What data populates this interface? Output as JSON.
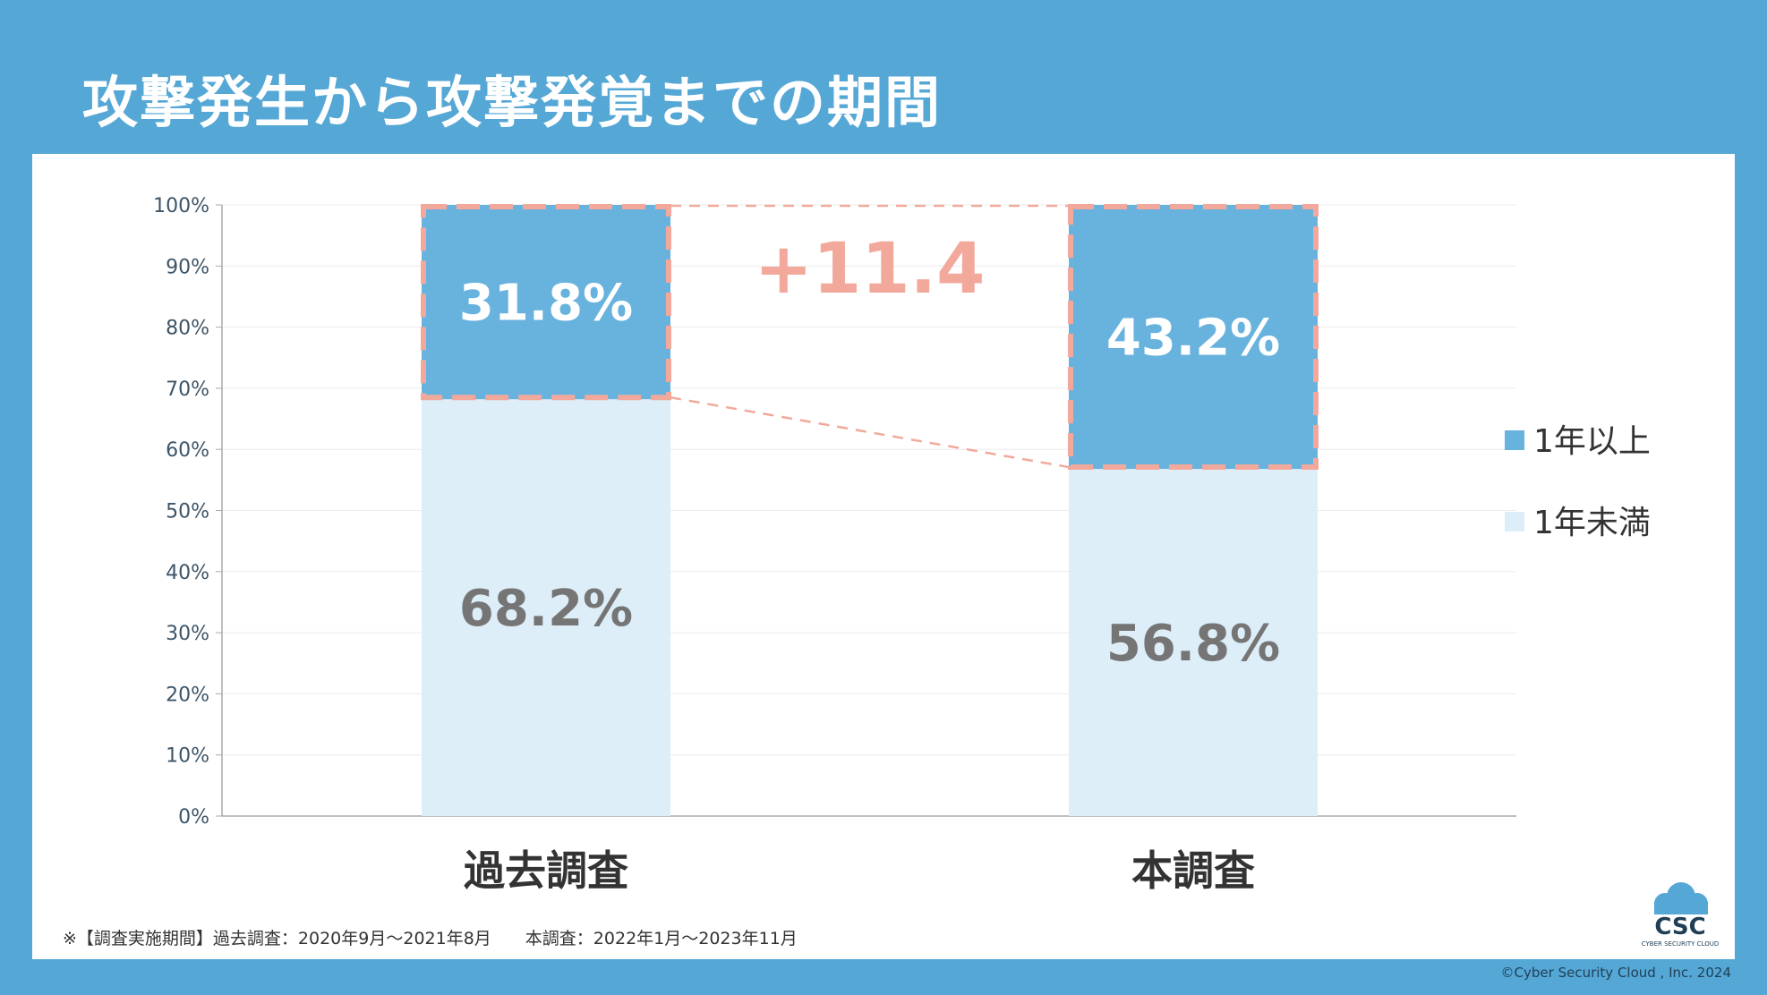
{
  "title": "攻撃発生から攻撃発覚までの期間",
  "chart_data": {
    "type": "bar",
    "stacked": true,
    "categories": [
      "過去調査",
      "本調査"
    ],
    "series": [
      {
        "name": "1年未満",
        "values": [
          68.2,
          56.8
        ],
        "labels": [
          "68.2%",
          "56.8%"
        ],
        "color": "#ddeef8"
      },
      {
        "name": "1年以上",
        "values": [
          31.8,
          43.2
        ],
        "labels": [
          "31.8%",
          "43.2%"
        ],
        "color": "#68b2de"
      }
    ],
    "yticks": [
      "0%",
      "10%",
      "20%",
      "30%",
      "40%",
      "50%",
      "60%",
      "70%",
      "80%",
      "90%",
      "100%"
    ],
    "ylim": [
      0,
      100
    ],
    "grid": true,
    "legend": "right",
    "legend_order": [
      "1年以上",
      "1年未満"
    ],
    "annotation": {
      "text": "+11.4",
      "color": "#f2a99c"
    },
    "highlight_color": "#f2a99c"
  },
  "footnote": "※【調査実施期間】過去調査：2020年9月～2021年8月　　本調査：2022年1月～2023年11月",
  "logo": {
    "text": "CSC",
    "subtext": "CYBER SECURITY CLOUD"
  },
  "copyright": "©Cyber Security Cloud , Inc. 2024"
}
